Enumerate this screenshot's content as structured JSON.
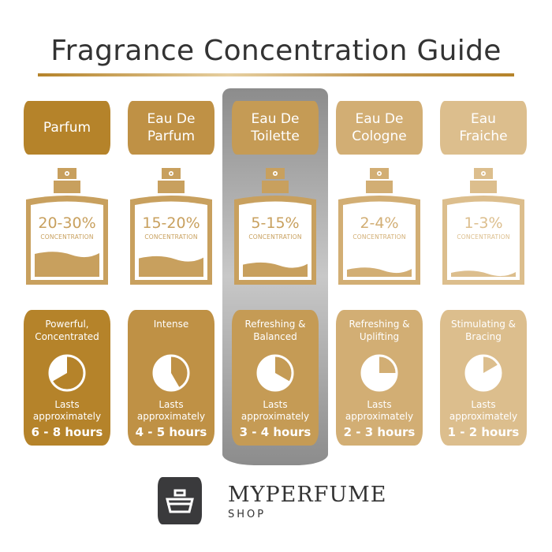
{
  "title": "Fragrance Concentration Guide",
  "highlighted": "Eau De Toilette",
  "columns": [
    {
      "name": "Parfum",
      "concentration": "20-30%",
      "concentration_label": "CONCENTRATION",
      "fill_level": 0.35,
      "character": "Powerful,\nConcentrated",
      "lasts_label": "Lasts\napproximately",
      "hours": "6 - 8 hours",
      "max_hours": 8,
      "color": "#b5832a",
      "light": "#c8a05e"
    },
    {
      "name": "Eau De\nParfum",
      "concentration": "15-20%",
      "concentration_label": "CONCENTRATION",
      "fill_level": 0.28,
      "character": "Intense",
      "lasts_label": "Lasts\napproximately",
      "hours": "4 - 5 hours",
      "max_hours": 5,
      "color": "#bf9145",
      "light": "#c8a05e"
    },
    {
      "name": "Eau De\nToilette",
      "concentration": "5-15%",
      "concentration_label": "CONCENTRATION",
      "fill_level": 0.18,
      "character": "Refreshing &\nBalanced",
      "lasts_label": "Lasts\napproximately",
      "hours": "3 - 4 hours",
      "max_hours": 4,
      "color": "#c59b55",
      "light": "#c8a05e"
    },
    {
      "name": "Eau De\nCologne",
      "concentration": "2-4%",
      "concentration_label": "CONCENTRATION",
      "fill_level": 0.1,
      "character": "Refreshing &\nUplifting",
      "lasts_label": "Lasts\napproximately",
      "hours": "2 - 3 hours",
      "max_hours": 3,
      "color": "#d2ae74",
      "light": "#d2ae74"
    },
    {
      "name": "Eau\nFraiche",
      "concentration": "1-3%",
      "concentration_label": "CONCENTRATION",
      "fill_level": 0.05,
      "character": "Stimulating &\nBracing",
      "lasts_label": "Lasts\napproximately",
      "hours": "1 - 2 hours",
      "max_hours": 2,
      "color": "#dcbe8d",
      "light": "#dcbe8d"
    }
  ],
  "brand": {
    "name": "MYPERFUME",
    "sub": "SHOP"
  },
  "colors": {
    "title": "#333333",
    "logo_bg": "#3a3a3c"
  }
}
